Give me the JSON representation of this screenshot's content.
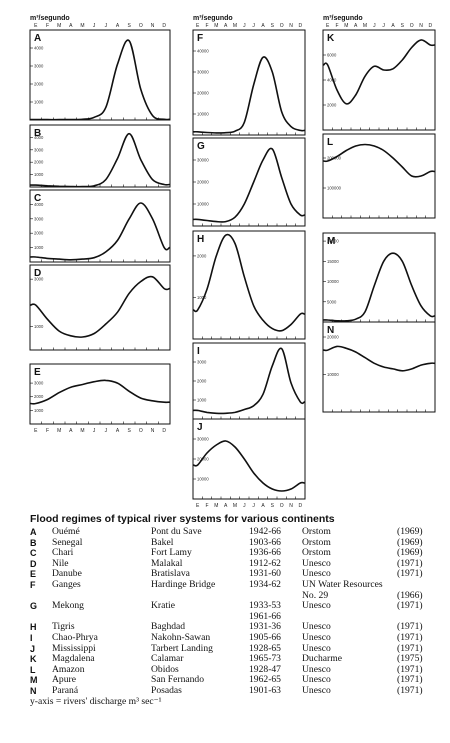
{
  "y_units": "m³/segundo",
  "months": [
    "E",
    "F",
    "M",
    "A",
    "M",
    "J",
    "J",
    "A",
    "S",
    "O",
    "N",
    "D"
  ],
  "chart_data": [
    {
      "type": "line",
      "label": "A",
      "ylim": [
        0,
        5000
      ],
      "yticks": [
        1000,
        2000,
        3000,
        4000
      ],
      "x": [
        1,
        2,
        3,
        4,
        5,
        6,
        7,
        8,
        9,
        10,
        11,
        12
      ],
      "values": [
        20,
        20,
        20,
        25,
        40,
        150,
        700,
        3100,
        4400,
        1700,
        250,
        40
      ]
    },
    {
      "type": "line",
      "label": "B",
      "ylim": [
        0,
        5000
      ],
      "yticks": [
        1000,
        2000,
        3000,
        4000
      ],
      "x": [
        1,
        2,
        3,
        4,
        5,
        6,
        7,
        8,
        9,
        10,
        11,
        12
      ],
      "values": [
        150,
        100,
        60,
        40,
        30,
        100,
        600,
        2300,
        4300,
        2200,
        600,
        200
      ]
    },
    {
      "type": "line",
      "label": "C",
      "ylim": [
        0,
        5000
      ],
      "yticks": [
        1000,
        2000,
        3000,
        4000
      ],
      "x": [
        1,
        2,
        3,
        4,
        5,
        6,
        7,
        8,
        9,
        10,
        11,
        12
      ],
      "values": [
        350,
        250,
        200,
        150,
        200,
        300,
        700,
        1500,
        3000,
        4100,
        3000,
        1000
      ]
    },
    {
      "type": "line",
      "label": "D",
      "ylim": [
        0,
        3600
      ],
      "yticks": [
        1000,
        3000
      ],
      "x": [
        1,
        2,
        3,
        4,
        5,
        6,
        7,
        8,
        9,
        10,
        11,
        12
      ],
      "values": [
        1900,
        1300,
        800,
        600,
        550,
        700,
        1100,
        1600,
        2400,
        2900,
        3100,
        2600
      ]
    },
    {
      "type": "line",
      "label": "E",
      "ylim": [
        0,
        4400
      ],
      "yticks": [
        1000,
        2000,
        3000
      ],
      "x": [
        1,
        2,
        3,
        4,
        5,
        6,
        7,
        8,
        9,
        10,
        11,
        12
      ],
      "values": [
        1500,
        1800,
        2300,
        2700,
        2900,
        3100,
        3200,
        3000,
        2400,
        1900,
        1700,
        1600
      ]
    },
    {
      "type": "line",
      "label": "F",
      "ylim": [
        0,
        50000
      ],
      "yticks": [
        10000,
        20000,
        30000,
        40000
      ],
      "x": [
        1,
        2,
        3,
        4,
        5,
        6,
        7,
        8,
        9,
        10,
        11,
        12
      ],
      "values": [
        1500,
        1200,
        1000,
        1100,
        1800,
        6000,
        24000,
        37000,
        30000,
        11000,
        4000,
        2200
      ]
    },
    {
      "type": "line",
      "label": "G",
      "ylim": [
        0,
        40000
      ],
      "yticks": [
        10000,
        20000,
        30000
      ],
      "x": [
        1,
        2,
        3,
        4,
        5,
        6,
        7,
        8,
        9,
        10,
        11,
        12
      ],
      "values": [
        3000,
        2500,
        2000,
        2000,
        4000,
        10000,
        20000,
        30000,
        35000,
        22000,
        10000,
        5000
      ]
    },
    {
      "type": "line",
      "label": "H",
      "ylim": [
        0,
        2600
      ],
      "yticks": [
        1000,
        2000
      ],
      "x": [
        1,
        2,
        3,
        4,
        5,
        6,
        7,
        8,
        9,
        10,
        11,
        12
      ],
      "values": [
        700,
        1200,
        2000,
        2500,
        2300,
        1500,
        800,
        450,
        250,
        200,
        350,
        600
      ]
    },
    {
      "type": "line",
      "label": "I",
      "ylim": [
        0,
        4000
      ],
      "yticks": [
        1000,
        2000,
        3000
      ],
      "x": [
        1,
        2,
        3,
        4,
        5,
        6,
        7,
        8,
        9,
        10,
        11,
        12
      ],
      "values": [
        450,
        350,
        300,
        300,
        350,
        500,
        700,
        1300,
        2800,
        3700,
        1900,
        900
      ]
    },
    {
      "type": "line",
      "label": "J",
      "ylim": [
        0,
        40000
      ],
      "yticks": [
        10000,
        20000,
        30000
      ],
      "x": [
        1,
        2,
        3,
        4,
        5,
        6,
        7,
        8,
        9,
        10,
        11,
        12
      ],
      "values": [
        17000,
        23000,
        27000,
        29000,
        26000,
        20000,
        13000,
        8000,
        5000,
        4000,
        5000,
        8000
      ]
    },
    {
      "type": "line",
      "label": "K",
      "ylim": [
        0,
        8000
      ],
      "yticks": [
        2000,
        4000,
        6000,
        8000
      ],
      "x": [
        1,
        2,
        3,
        4,
        5,
        6,
        7,
        8,
        9,
        10,
        11,
        12
      ],
      "values": [
        5200,
        3200,
        2100,
        2800,
        4300,
        5100,
        4800,
        4900,
        5600,
        6600,
        7200,
        6800
      ]
    },
    {
      "type": "line",
      "label": "L",
      "ylim": [
        0,
        280000
      ],
      "yticks": [
        100000,
        200000
      ],
      "x": [
        1,
        2,
        3,
        4,
        5,
        6,
        7,
        8,
        9,
        10,
        11,
        12
      ],
      "values": [
        190000,
        205000,
        225000,
        240000,
        245000,
        240000,
        225000,
        200000,
        170000,
        140000,
        140000,
        155000
      ]
    },
    {
      "type": "line",
      "label": "M",
      "ylim": [
        0,
        22000
      ],
      "yticks": [
        5000,
        10000,
        15000,
        20000
      ],
      "x": [
        1,
        2,
        3,
        4,
        5,
        6,
        7,
        8,
        9,
        10,
        11,
        12
      ],
      "values": [
        500,
        300,
        300,
        700,
        2500,
        9000,
        15000,
        17000,
        15000,
        9000,
        4000,
        1500
      ]
    },
    {
      "type": "line",
      "label": "N",
      "ylim": [
        0,
        24000
      ],
      "yticks": [
        10000,
        20000
      ],
      "x": [
        1,
        2,
        3,
        4,
        5,
        6,
        7,
        8,
        9,
        10,
        11,
        12
      ],
      "values": [
        16500,
        17500,
        17000,
        16000,
        14500,
        13000,
        12000,
        11500,
        11000,
        11500,
        12500,
        13000
      ]
    }
  ],
  "caption": {
    "title": "Flood regimes of typical river systems for various continents",
    "rows": [
      {
        "code": "A",
        "river": "Ouémé",
        "station": "Pont du Save",
        "period": "1942-66",
        "source": "Orstom",
        "year": "(1969)"
      },
      {
        "code": "B",
        "river": "Senegal",
        "station": "Bakel",
        "period": "1903-66",
        "source": "Orstom",
        "year": "(1969)"
      },
      {
        "code": "C",
        "river": "Chari",
        "station": "Fort Lamy",
        "period": "1936-66",
        "source": "Orstom",
        "year": "(1969)"
      },
      {
        "code": "D",
        "river": "Nile",
        "station": "Malakal",
        "period": "1912-62",
        "source": "Unesco",
        "year": "(1971)"
      },
      {
        "code": "E",
        "river": "Danube",
        "station": "Bratislava",
        "period": "1931-60",
        "source": "Unesco",
        "year": "(1971)"
      },
      {
        "code": "F",
        "river": "Ganges",
        "station": "Hardinge Bridge",
        "period": "1934-62",
        "source": "UN Water Resources",
        "year": ""
      },
      {
        "code": "",
        "river": "",
        "station": "",
        "period": "",
        "source": "No. 29",
        "year": "(1966)"
      },
      {
        "code": "G",
        "river": "Mekong",
        "station": "Kratie",
        "period": "1933-53",
        "source": "Unesco",
        "year": "(1971)"
      },
      {
        "code": "",
        "river": "",
        "station": "",
        "period": "1961-66",
        "source": "",
        "year": ""
      },
      {
        "code": "H",
        "river": "Tigris",
        "station": "Baghdad",
        "period": "1931-36",
        "source": "Unesco",
        "year": "(1971)"
      },
      {
        "code": "I",
        "river": "Chao-Phrya",
        "station": "Nakohn-Sawan",
        "period": "1905-66",
        "source": "Unesco",
        "year": "(1971)"
      },
      {
        "code": "J",
        "river": "Mississippi",
        "station": "Tarbert Landing",
        "period": "1928-65",
        "source": "Unesco",
        "year": "(1971)"
      },
      {
        "code": "K",
        "river": "Magdalena",
        "station": "Calamar",
        "period": "1965-73",
        "source": "Ducharme",
        "year": "(1975)"
      },
      {
        "code": "L",
        "river": "Amazon",
        "station": "Obidos",
        "period": "1928-47",
        "source": "Unesco",
        "year": "(1971)"
      },
      {
        "code": "M",
        "river": "Apure",
        "station": "San Fernando",
        "period": "1962-65",
        "source": "Unesco",
        "year": "(1971)"
      },
      {
        "code": "N",
        "river": "Paraná",
        "station": "Posadas",
        "period": "1901-63",
        "source": "Unesco",
        "year": "(1971)"
      }
    ],
    "footnote": "y-axis = rivers' discharge m³ sec⁻¹"
  }
}
